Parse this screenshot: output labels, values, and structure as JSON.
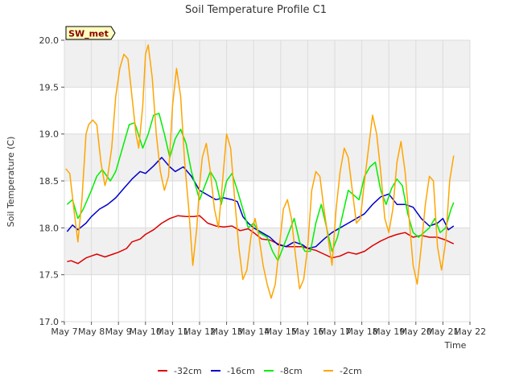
{
  "chart_data": {
    "type": "line",
    "title": "Soil Temperature Profile C1",
    "xlabel": "Time",
    "ylabel": "Soil Temperature (C)",
    "badge": "SW_met",
    "ylim": [
      17.0,
      20.0
    ],
    "xlim": [
      0,
      15
    ],
    "y_ticks": [
      "17.0",
      "17.5",
      "18.0",
      "18.5",
      "19.0",
      "19.5",
      "20.0"
    ],
    "y_tick_values": [
      17.0,
      17.5,
      18.0,
      18.5,
      19.0,
      19.5,
      20.0
    ],
    "x_ticks": [
      "May 7",
      "May 8",
      "May 9",
      "May 10",
      "May 11",
      "May 12",
      "May 13",
      "May 14",
      "May 15",
      "May 16",
      "May 17",
      "May 18",
      "May 19",
      "May 20",
      "May 21",
      "May 22"
    ],
    "x_tick_values": [
      0,
      1,
      2,
      3,
      4,
      5,
      6,
      7,
      8,
      9,
      10,
      11,
      12,
      13,
      14,
      15
    ],
    "grid": true,
    "legend": "bottom",
    "colors": {
      "band": "#f0f0f0",
      "grid": "#dcdcdc",
      "badge_fill": "#ffffc0"
    },
    "series": [
      {
        "name": "-32cm",
        "color": "#dd0000",
        "x": [
          0.1,
          0.25,
          0.5,
          0.8,
          1.0,
          1.2,
          1.5,
          1.8,
          2.0,
          2.3,
          2.5,
          2.8,
          3.0,
          3.3,
          3.6,
          3.9,
          4.2,
          4.5,
          4.8,
          5.0,
          5.3,
          5.6,
          5.9,
          6.2,
          6.5,
          6.8,
          7.0,
          7.3,
          7.6,
          7.9,
          8.2,
          8.5,
          8.8,
          9.0,
          9.3,
          9.6,
          9.9,
          10.2,
          10.5,
          10.8,
          11.1,
          11.4,
          11.7,
          12.0,
          12.3,
          12.6,
          12.9,
          13.2,
          13.5,
          13.8,
          14.1,
          14.4
        ],
        "y": [
          17.64,
          17.65,
          17.62,
          17.68,
          17.7,
          17.72,
          17.69,
          17.72,
          17.74,
          17.78,
          17.85,
          17.88,
          17.93,
          17.98,
          18.05,
          18.1,
          18.13,
          18.12,
          18.12,
          18.13,
          18.05,
          18.02,
          18.01,
          18.02,
          17.97,
          17.99,
          17.95,
          17.88,
          17.87,
          17.83,
          17.8,
          17.8,
          17.8,
          17.78,
          17.76,
          17.72,
          17.68,
          17.7,
          17.74,
          17.72,
          17.75,
          17.81,
          17.86,
          17.9,
          17.93,
          17.95,
          17.9,
          17.92,
          17.9,
          17.9,
          17.87,
          17.83
        ]
      },
      {
        "name": "-16cm",
        "color": "#0000cc",
        "x": [
          0.1,
          0.3,
          0.5,
          0.8,
          1.0,
          1.3,
          1.6,
          1.9,
          2.2,
          2.5,
          2.8,
          3.0,
          3.3,
          3.6,
          3.9,
          4.1,
          4.4,
          4.7,
          5.0,
          5.3,
          5.6,
          5.9,
          6.2,
          6.4,
          6.6,
          6.8,
          7.0,
          7.3,
          7.6,
          7.9,
          8.2,
          8.5,
          8.8,
          9.0,
          9.3,
          9.6,
          9.9,
          10.2,
          10.5,
          10.8,
          11.1,
          11.4,
          11.7,
          12.0,
          12.3,
          12.6,
          12.9,
          13.2,
          13.5,
          13.8,
          14.0,
          14.2,
          14.4
        ],
        "y": [
          17.96,
          18.03,
          17.98,
          18.05,
          18.12,
          18.2,
          18.25,
          18.32,
          18.42,
          18.52,
          18.6,
          18.58,
          18.66,
          18.75,
          18.65,
          18.6,
          18.65,
          18.55,
          18.4,
          18.35,
          18.3,
          18.32,
          18.3,
          18.28,
          18.12,
          18.05,
          18.0,
          17.95,
          17.9,
          17.82,
          17.8,
          17.85,
          17.82,
          17.78,
          17.8,
          17.88,
          17.95,
          18.0,
          18.05,
          18.1,
          18.15,
          18.25,
          18.33,
          18.36,
          18.25,
          18.25,
          18.22,
          18.1,
          18.02,
          18.05,
          18.1,
          17.98,
          18.02
        ]
      },
      {
        "name": "-8cm",
        "color": "#00ee00",
        "x": [
          0.1,
          0.3,
          0.5,
          0.7,
          1.0,
          1.2,
          1.4,
          1.7,
          1.9,
          2.2,
          2.4,
          2.6,
          2.9,
          3.1,
          3.3,
          3.5,
          3.7,
          3.9,
          4.1,
          4.3,
          4.5,
          4.7,
          5.0,
          5.2,
          5.4,
          5.6,
          5.8,
          6.0,
          6.2,
          6.4,
          6.6,
          6.8,
          7.0,
          7.2,
          7.5,
          7.7,
          7.9,
          8.1,
          8.3,
          8.5,
          8.7,
          8.9,
          9.1,
          9.3,
          9.5,
          9.7,
          9.9,
          10.1,
          10.3,
          10.5,
          10.7,
          10.9,
          11.1,
          11.3,
          11.5,
          11.7,
          11.9,
          12.1,
          12.3,
          12.5,
          12.7,
          12.9,
          13.1,
          13.3,
          13.5,
          13.7,
          13.9,
          14.1,
          14.3,
          14.4
        ],
        "y": [
          18.25,
          18.3,
          18.1,
          18.2,
          18.4,
          18.55,
          18.62,
          18.5,
          18.6,
          18.9,
          19.1,
          19.12,
          18.85,
          19.0,
          19.2,
          19.22,
          19.0,
          18.75,
          18.95,
          19.05,
          18.9,
          18.6,
          18.3,
          18.45,
          18.6,
          18.5,
          18.25,
          18.5,
          18.58,
          18.4,
          18.2,
          18.0,
          18.05,
          17.95,
          17.9,
          17.75,
          17.65,
          17.8,
          17.95,
          18.1,
          17.85,
          17.75,
          17.75,
          18.05,
          18.25,
          18.0,
          17.75,
          17.9,
          18.15,
          18.4,
          18.35,
          18.3,
          18.55,
          18.65,
          18.7,
          18.4,
          18.25,
          18.42,
          18.52,
          18.45,
          18.15,
          17.95,
          17.9,
          17.95,
          18.0,
          18.1,
          17.95,
          18.0,
          18.2,
          18.27
        ]
      },
      {
        "name": "-2cm",
        "color": "#ffa500",
        "x": [
          0.05,
          0.2,
          0.35,
          0.5,
          0.65,
          0.8,
          0.9,
          1.05,
          1.2,
          1.35,
          1.5,
          1.6,
          1.75,
          1.9,
          2.05,
          2.2,
          2.35,
          2.5,
          2.65,
          2.75,
          2.9,
          3.0,
          3.1,
          3.25,
          3.4,
          3.55,
          3.7,
          3.85,
          4.0,
          4.15,
          4.3,
          4.45,
          4.6,
          4.75,
          4.9,
          5.0,
          5.1,
          5.25,
          5.4,
          5.55,
          5.7,
          5.85,
          6.0,
          6.15,
          6.3,
          6.45,
          6.6,
          6.75,
          6.9,
          7.05,
          7.2,
          7.35,
          7.5,
          7.65,
          7.8,
          7.95,
          8.1,
          8.25,
          8.4,
          8.55,
          8.7,
          8.85,
          9.0,
          9.15,
          9.3,
          9.45,
          9.6,
          9.75,
          9.9,
          10.05,
          10.2,
          10.35,
          10.5,
          10.65,
          10.8,
          10.95,
          11.1,
          11.25,
          11.4,
          11.55,
          11.7,
          11.85,
          12.0,
          12.15,
          12.3,
          12.45,
          12.6,
          12.75,
          12.9,
          13.05,
          13.2,
          13.35,
          13.5,
          13.65,
          13.8,
          13.95,
          14.1,
          14.25,
          14.4
        ],
        "y": [
          18.63,
          18.58,
          18.2,
          17.85,
          18.3,
          19.0,
          19.1,
          19.15,
          19.1,
          18.7,
          18.45,
          18.55,
          18.85,
          19.4,
          19.7,
          19.85,
          19.8,
          19.4,
          19.0,
          18.85,
          19.3,
          19.85,
          19.95,
          19.6,
          19.0,
          18.6,
          18.4,
          18.55,
          19.3,
          19.7,
          19.4,
          18.7,
          18.2,
          17.6,
          18.0,
          18.45,
          18.75,
          18.9,
          18.6,
          18.2,
          18.0,
          18.5,
          19.0,
          18.85,
          18.3,
          17.8,
          17.45,
          17.55,
          17.9,
          18.1,
          17.9,
          17.6,
          17.4,
          17.25,
          17.4,
          17.8,
          18.2,
          18.3,
          18.1,
          17.7,
          17.35,
          17.45,
          17.8,
          18.4,
          18.6,
          18.55,
          18.2,
          17.9,
          17.6,
          18.2,
          18.6,
          18.85,
          18.75,
          18.4,
          18.05,
          18.1,
          18.5,
          18.85,
          19.2,
          19.0,
          18.6,
          18.1,
          17.95,
          18.2,
          18.7,
          18.92,
          18.6,
          18.1,
          17.6,
          17.4,
          17.8,
          18.25,
          18.55,
          18.5,
          17.8,
          17.55,
          17.85,
          18.5,
          18.77
        ]
      }
    ]
  }
}
